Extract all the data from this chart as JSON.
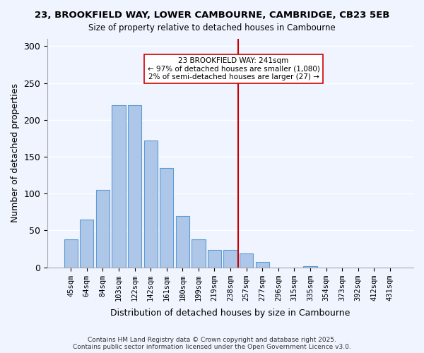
{
  "title": "23, BROOKFIELD WAY, LOWER CAMBOURNE, CAMBRIDGE, CB23 5EB",
  "subtitle": "Size of property relative to detached houses in Cambourne",
  "xlabel": "Distribution of detached houses by size in Cambourne",
  "ylabel": "Number of detached properties",
  "bar_labels": [
    "45sqm",
    "64sqm",
    "84sqm",
    "103sqm",
    "122sqm",
    "142sqm",
    "161sqm",
    "180sqm",
    "199sqm",
    "219sqm",
    "238sqm",
    "257sqm",
    "277sqm",
    "296sqm",
    "315sqm",
    "335sqm",
    "354sqm",
    "373sqm",
    "392sqm",
    "412sqm",
    "431sqm"
  ],
  "bar_heights": [
    38,
    65,
    105,
    220,
    220,
    172,
    135,
    70,
    38,
    24,
    24,
    19,
    7,
    0,
    0,
    2,
    0,
    0,
    0,
    0,
    0
  ],
  "bar_color": "#aec6e8",
  "bar_edge_color": "#5b9bd5",
  "ylim": [
    0,
    310
  ],
  "yticks": [
    0,
    50,
    100,
    150,
    200,
    250,
    300
  ],
  "vline_x": 10.5,
  "vline_color": "#cc0000",
  "annotation_title": "23 BROOKFIELD WAY: 241sqm",
  "annotation_line1": "← 97% of detached houses are smaller (1,080)",
  "annotation_line2": "2% of semi-detached houses are larger (27) →",
  "annotation_box_color": "#ffffff",
  "annotation_box_edge_color": "#cc0000",
  "footnote1": "Contains HM Land Registry data © Crown copyright and database right 2025.",
  "footnote2": "Contains public sector information licensed under the Open Government Licence v3.0.",
  "background_color": "#f0f4ff",
  "grid_color": "#ffffff"
}
